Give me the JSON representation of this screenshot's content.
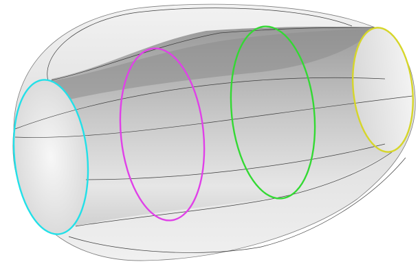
{
  "scene": {
    "background": "#ffffff",
    "body_fill": "#dcdcdc",
    "inner_shadow": "#8c8c8c",
    "edge_color": "#3a3a3a",
    "sections": [
      {
        "name": "cyan",
        "color": "#22e0e8"
      },
      {
        "name": "magenta",
        "color": "#e040e8"
      },
      {
        "name": "green",
        "color": "#33d933"
      },
      {
        "name": "yellow",
        "color": "#d6d62a"
      }
    ]
  }
}
